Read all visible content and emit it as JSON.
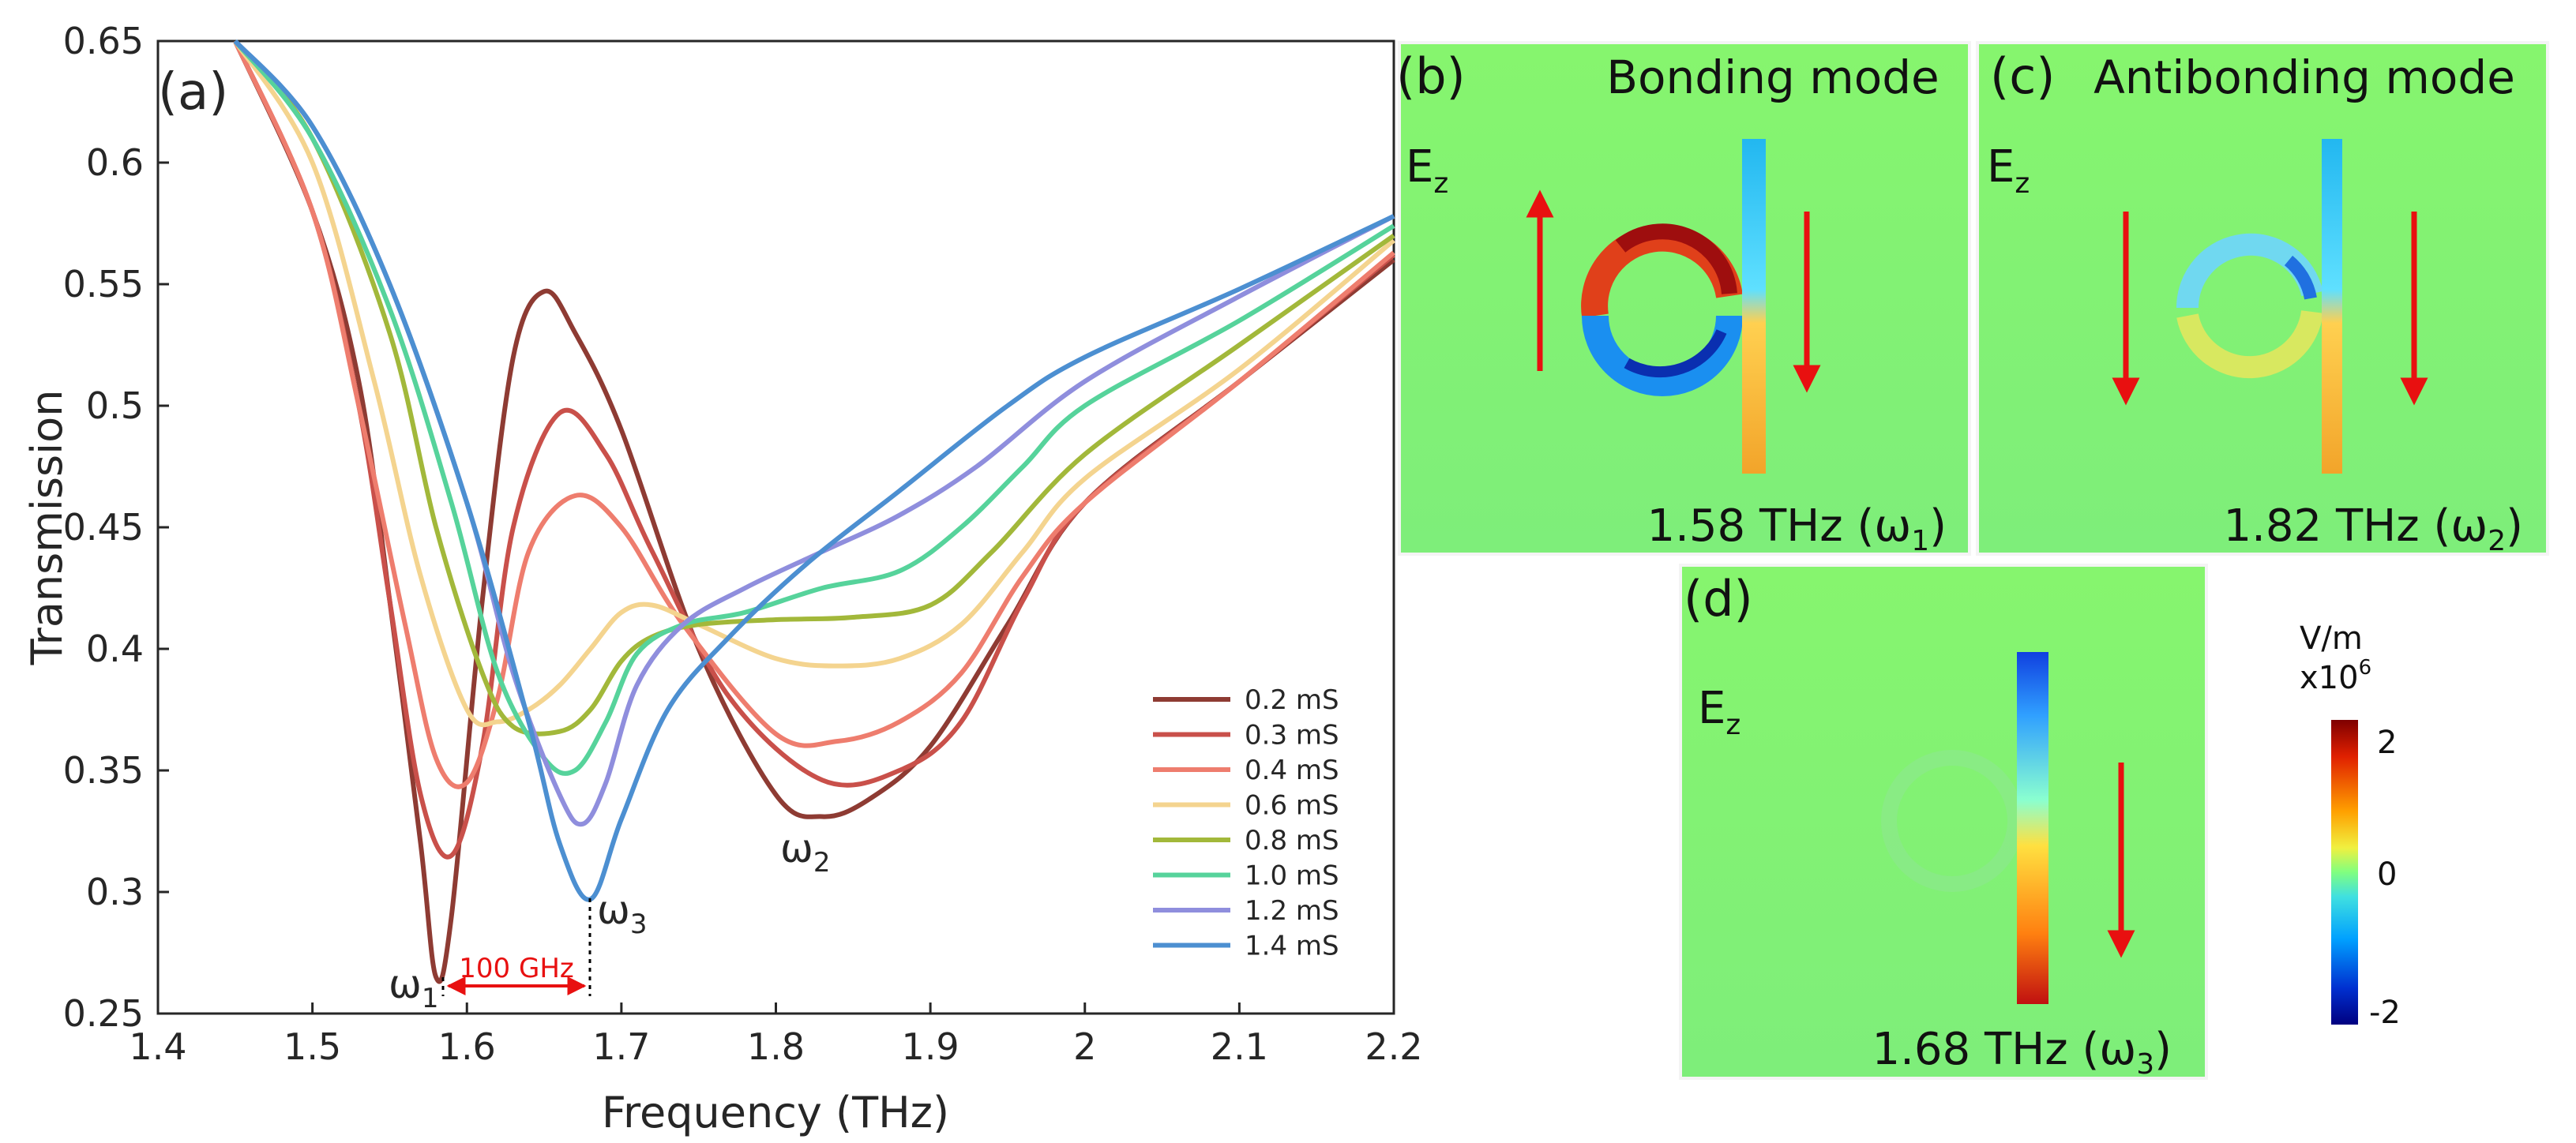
{
  "chart_data": [
    {
      "type": "line",
      "panel_label": "(a)",
      "xlabel": "Frequency (THz)",
      "ylabel": "Transmission",
      "xlim": [
        1.4,
        2.2
      ],
      "ylim": [
        0.25,
        0.65
      ],
      "xticks": [
        "1.4",
        "1.5",
        "1.6",
        "1.7",
        "1.8",
        "1.9",
        "2",
        "2.1",
        "2.2"
      ],
      "yticks": [
        "0.25",
        "0.3",
        "0.35",
        "0.4",
        "0.45",
        "0.5",
        "0.55",
        "0.6",
        "0.65"
      ],
      "legend_position": "bottom-right",
      "series": [
        {
          "name": "0.2 mS",
          "color": "#8e3b33",
          "x": [
            1.45,
            1.5,
            1.53,
            1.55,
            1.57,
            1.58,
            1.59,
            1.61,
            1.63,
            1.65,
            1.67,
            1.7,
            1.75,
            1.8,
            1.83,
            1.86,
            1.9,
            1.95,
            2.0,
            2.1,
            2.2
          ],
          "y": [
            0.65,
            0.58,
            0.51,
            0.42,
            0.32,
            0.265,
            0.29,
            0.42,
            0.52,
            0.547,
            0.53,
            0.49,
            0.4,
            0.34,
            0.331,
            0.338,
            0.36,
            0.41,
            0.46,
            0.51,
            0.56
          ]
        },
        {
          "name": "0.3 mS",
          "color": "#c9504a",
          "x": [
            1.45,
            1.5,
            1.53,
            1.55,
            1.57,
            1.59,
            1.61,
            1.63,
            1.66,
            1.69,
            1.72,
            1.77,
            1.83,
            1.88,
            1.92,
            1.96,
            2.0,
            2.1,
            2.2
          ],
          "y": [
            0.65,
            0.58,
            0.5,
            0.42,
            0.34,
            0.315,
            0.36,
            0.45,
            0.497,
            0.48,
            0.44,
            0.38,
            0.346,
            0.35,
            0.37,
            0.42,
            0.46,
            0.51,
            0.562
          ]
        },
        {
          "name": "0.4 mS",
          "color": "#ee7d6e",
          "x": [
            1.45,
            1.5,
            1.53,
            1.56,
            1.58,
            1.6,
            1.62,
            1.64,
            1.67,
            1.7,
            1.74,
            1.8,
            1.84,
            1.88,
            1.92,
            1.96,
            2.0,
            2.1,
            2.2
          ],
          "y": [
            0.65,
            0.58,
            0.5,
            0.41,
            0.355,
            0.345,
            0.38,
            0.44,
            0.463,
            0.45,
            0.41,
            0.365,
            0.362,
            0.37,
            0.39,
            0.43,
            0.46,
            0.51,
            0.563
          ]
        },
        {
          "name": "0.6 mS",
          "color": "#f4d48f",
          "x": [
            1.45,
            1.5,
            1.54,
            1.57,
            1.6,
            1.62,
            1.64,
            1.66,
            1.68,
            1.7,
            1.72,
            1.75,
            1.8,
            1.84,
            1.88,
            1.92,
            1.96,
            2.0,
            2.1,
            2.2
          ],
          "y": [
            0.65,
            0.6,
            0.51,
            0.43,
            0.375,
            0.37,
            0.375,
            0.385,
            0.4,
            0.415,
            0.418,
            0.41,
            0.396,
            0.393,
            0.396,
            0.41,
            0.44,
            0.47,
            0.515,
            0.568
          ]
        },
        {
          "name": "0.8 mS",
          "color": "#a2b83a",
          "x": [
            1.45,
            1.5,
            1.55,
            1.58,
            1.61,
            1.63,
            1.66,
            1.68,
            1.7,
            1.72,
            1.75,
            1.8,
            1.85,
            1.9,
            1.94,
            2.0,
            2.1,
            2.2
          ],
          "y": [
            0.65,
            0.61,
            0.53,
            0.45,
            0.39,
            0.368,
            0.366,
            0.375,
            0.395,
            0.405,
            0.41,
            0.412,
            0.413,
            0.418,
            0.44,
            0.48,
            0.525,
            0.57
          ]
        },
        {
          "name": "1.0 mS",
          "color": "#56d39b",
          "x": [
            1.45,
            1.5,
            1.55,
            1.59,
            1.62,
            1.65,
            1.67,
            1.69,
            1.71,
            1.74,
            1.78,
            1.83,
            1.88,
            1.92,
            1.96,
            2.0,
            2.1,
            2.2
          ],
          "y": [
            0.65,
            0.61,
            0.54,
            0.46,
            0.39,
            0.355,
            0.35,
            0.37,
            0.398,
            0.41,
            0.415,
            0.425,
            0.432,
            0.45,
            0.475,
            0.5,
            0.535,
            0.574
          ]
        },
        {
          "name": "1.2 mS",
          "color": "#8f8edd",
          "x": [
            1.45,
            1.5,
            1.55,
            1.6,
            1.63,
            1.66,
            1.675,
            1.69,
            1.71,
            1.74,
            1.78,
            1.83,
            1.88,
            1.93,
            2.0,
            2.1,
            2.2
          ],
          "y": [
            0.65,
            0.615,
            0.55,
            0.46,
            0.39,
            0.34,
            0.328,
            0.345,
            0.385,
            0.41,
            0.425,
            0.44,
            0.455,
            0.475,
            0.51,
            0.545,
            0.578
          ]
        },
        {
          "name": "1.4 mS",
          "color": "#4c8fd1",
          "x": [
            1.45,
            1.5,
            1.55,
            1.6,
            1.64,
            1.66,
            1.68,
            1.7,
            1.73,
            1.77,
            1.82,
            1.88,
            1.95,
            2.0,
            2.1,
            2.2
          ],
          "y": [
            0.65,
            0.615,
            0.55,
            0.46,
            0.37,
            0.32,
            0.297,
            0.33,
            0.375,
            0.405,
            0.435,
            0.465,
            0.5,
            0.52,
            0.548,
            0.578
          ]
        }
      ],
      "annotations": {
        "omega1": "ω",
        "omega1_sub": "1",
        "omega2": "ω",
        "omega2_sub": "2",
        "omega3": "ω",
        "omega3_sub": "3",
        "spacing_label": "100 GHz"
      }
    },
    {
      "type": "heatmap",
      "panel_label": "(b)",
      "title": "Bonding mode",
      "field": "E",
      "field_sub": "z",
      "caption_prefix": "1.58 THz (ω",
      "caption_sub": "1",
      "caption_suffix": ")"
    },
    {
      "type": "heatmap",
      "panel_label": "(c)",
      "title": "Antibonding mode",
      "field": "E",
      "field_sub": "z",
      "caption_prefix": "1.82 THz (ω",
      "caption_sub": "2",
      "caption_suffix": ")"
    },
    {
      "type": "heatmap",
      "panel_label": "(d)",
      "title": "",
      "field": "E",
      "field_sub": "z",
      "caption_prefix": "1.68 THz (ω",
      "caption_sub": "3",
      "caption_suffix": ")",
      "colorbar": {
        "unit": "V/m",
        "scale": "x10",
        "scale_exp": "6",
        "ticks": [
          "2",
          "0",
          "-2"
        ],
        "range": [
          -2,
          2
        ]
      }
    }
  ]
}
